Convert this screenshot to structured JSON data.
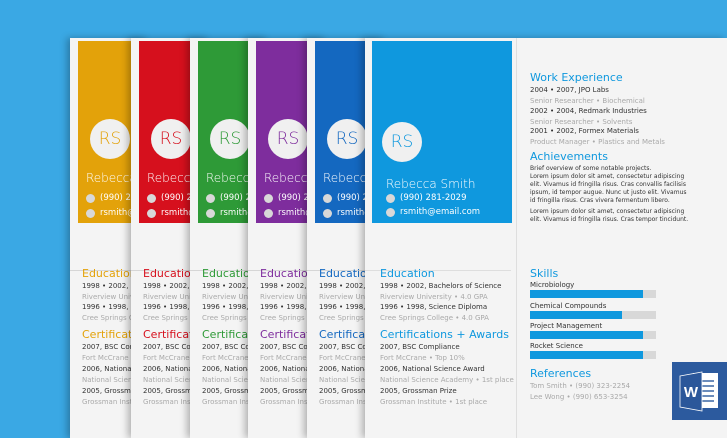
{
  "colors": {
    "background": "#3aa8e4",
    "amber": "#e3a20a",
    "red": "#d6101d",
    "green": "#2e9a37",
    "purple": "#7e2d9d",
    "navy": "#1468c0",
    "blue": "#0f98de",
    "word_blue": "#2c5a9e"
  },
  "variants": [
    {
      "monogram": "RS",
      "name_partial": "Rebecca",
      "phone_partial": "(990) 2",
      "email_partial": "rsmith@",
      "education_heading": "Education",
      "edu_partial": "1998 • 2002, Ba",
      "edu_school_partial": "Riverview Univer",
      "edu_diploma_partial": "1996 • 1998, Sci",
      "edu_school2_partial": "Cree Springs Co",
      "cert_heading_partial": "Certification",
      "cert_line1": "2007, BSC Com",
      "cert_line2": "Fort McCrane",
      "cert_line3": "2006, National",
      "cert_line4": "National Scien",
      "cert_line5": "2005, Grossma",
      "cert_line6": "Grossman Instit"
    },
    {
      "monogram": "RS",
      "name_partial": "Rebecca",
      "phone_partial": "(990) 2",
      "email_partial": "rsmith@",
      "education_heading": "Education",
      "edu_partial": "1998 • 2002, Ba",
      "edu_school_partial": "Riverview Unive",
      "edu_diploma_partial": "1996 • 1998, Sci",
      "edu_school2_partial": "Cree Springs Co",
      "cert_heading_partial": "Certification",
      "cert_line1": "2007, BSC Com",
      "cert_line2": "Fort McCrane",
      "cert_line3": "2006, National",
      "cert_line4": "National Scien",
      "cert_line5": "2005, Grossma",
      "cert_line6": "Grossman Institu"
    },
    {
      "monogram": "RS",
      "name_partial": "Rebecca",
      "phone_partial": "(990) 2",
      "email_partial": "rsmith@",
      "education_heading": "Education",
      "edu_partial": "1998 • 2002, Ba",
      "edu_school_partial": "Riverview Unive",
      "edu_diploma_partial": "1996 • 1998, Sc",
      "edu_school2_partial": "Cree Springs Co",
      "cert_heading_partial": "Certification",
      "cert_line1": "2007, BSC Com",
      "cert_line2": "Fort McCrane",
      "cert_line3": "2006, National",
      "cert_line4": "National Scien",
      "cert_line5": "2005, Grossma",
      "cert_line6": "Grossman Instit"
    },
    {
      "monogram": "RS",
      "name_partial": "Rebecca",
      "phone_partial": "(990) 2",
      "email_partial": "rsmith@",
      "education_heading": "Education",
      "edu_partial": "1998 • 2002, Ba",
      "edu_school_partial": "Riverview Unive",
      "edu_diploma_partial": "1996 • 1998, Sc",
      "edu_school2_partial": "Cree Springs Co",
      "cert_heading_partial": "Certification",
      "cert_line1": "2007, BSC Com",
      "cert_line2": "Fort McCrane",
      "cert_line3": "2006, National",
      "cert_line4": "National Scien",
      "cert_line5": "2005, Grossma",
      "cert_line6": "Grossman Instit"
    },
    {
      "monogram": "RS",
      "name_partial": "Rebecca",
      "phone_partial": "(990) 2",
      "email_partial": "rsmith@",
      "education_heading": "Education",
      "edu_partial": "1998 • 2002, Ba",
      "edu_school_partial": "Riverview Unive",
      "edu_diploma_partial": "1996 • 1998, Sc",
      "edu_school2_partial": "Cree Springs Co",
      "cert_heading_partial": "Certification",
      "cert_line1": "2007, BSC Com",
      "cert_line2": "Fort McCrane",
      "cert_line3": "2006, National",
      "cert_line4": "National Scien",
      "cert_line5": "2005, Grossma",
      "cert_line6": "Grossman Instit"
    }
  ],
  "resume": {
    "monogram": "RS",
    "name": "Rebecca Smith",
    "phone": "(990) 281-2029",
    "email": "rsmith@email.com",
    "work_heading": "Work Experience",
    "work": [
      {
        "dates_company": "2004 • 2007, JPO Labs",
        "role": "Senior Researcher • Biochemical"
      },
      {
        "dates_company": "2002 • 2004, Redmark Industries",
        "role": "Senior Researcher • Solvents"
      },
      {
        "dates_company": "2001 • 2002, Formex Materials",
        "role": "Product Manager • Plastics and Metals"
      }
    ],
    "achievements_heading": "Achievements",
    "achievements_intro": "Brief overview of some notable projects.",
    "achievement_para1": [
      "Lorem ipsum dolor sit amet, consectetur adipiscing",
      "elit. Vivamus id fringilla risus. Cras convallis facilisis",
      "ipsum, id tempor augue. Nunc ut justo elit. Vivamus",
      "id fringilla risus. Cras vivera fermentum libero."
    ],
    "achievement_para2": [
      "Lorem ipsum dolor sit amet, consectetur adipiscing",
      "elit. Vivamus id fringilla risus. Cras tempor tincidunt."
    ],
    "education_heading": "Education",
    "education": [
      {
        "line": "1998 • 2002, Bachelors of Science",
        "detail": "Riverview University • 4.0 GPA"
      },
      {
        "line": "1996 • 1998, Science Diploma",
        "detail": "Cree Springs College • 4.0 GPA"
      }
    ],
    "certifications_heading": "Certifications + Awards",
    "certifications": [
      {
        "line": "2007, BSC Compliance",
        "detail": "Fort McCrane • Top 10%"
      },
      {
        "line": "2006, National Science Award",
        "detail": "National Science Academy • 1st place"
      },
      {
        "line": "2005, Grossman Prize",
        "detail": "Grossman Institute • 1st place"
      }
    ],
    "skills_heading": "Skills",
    "skills": [
      {
        "name": "Microbiology",
        "level": 0.9
      },
      {
        "name": "Chemical Compounds",
        "level": 0.73
      },
      {
        "name": "Project Management",
        "level": 0.9
      },
      {
        "name": "Rocket Science",
        "level": 0.9
      }
    ],
    "references_heading": "References",
    "references": [
      "Tom Smith • (990) 323-2254",
      "Lee Wong • (990) 653-3254"
    ]
  },
  "word_icon": {
    "name": "word-icon",
    "letter": "W"
  }
}
